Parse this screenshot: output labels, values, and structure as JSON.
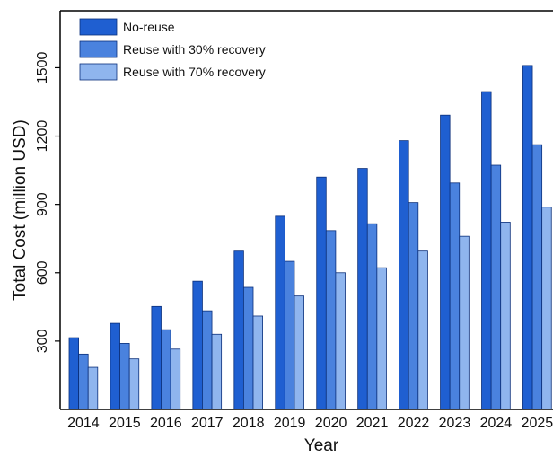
{
  "chart_data": {
    "type": "bar",
    "title": "",
    "xlabel": "Year",
    "ylabel": "Total Cost (million USD)",
    "ylim": [
      0,
      1750
    ],
    "yticks": [
      300,
      600,
      900,
      1200,
      1500
    ],
    "grid": false,
    "legend_position": "top-left",
    "categories": [
      "2014",
      "2015",
      "2016",
      "2017",
      "2018",
      "2019",
      "2020",
      "2021",
      "2022",
      "2023",
      "2024",
      "2025"
    ],
    "series": [
      {
        "name": "No-reuse",
        "color": "#1f5fd1",
        "values": [
          315,
          378,
          452,
          563,
          695,
          848,
          1020,
          1058,
          1180,
          1292,
          1395,
          1510
        ]
      },
      {
        "name": "Reuse with 30% recovery",
        "color": "#4a82de",
        "values": [
          243,
          290,
          350,
          433,
          536,
          650,
          785,
          815,
          908,
          994,
          1072,
          1162
        ]
      },
      {
        "name": "Reuse with 70% recovery",
        "color": "#8fb5ee",
        "values": [
          185,
          222,
          265,
          330,
          410,
          498,
          600,
          622,
          695,
          760,
          822,
          888
        ]
      }
    ]
  }
}
